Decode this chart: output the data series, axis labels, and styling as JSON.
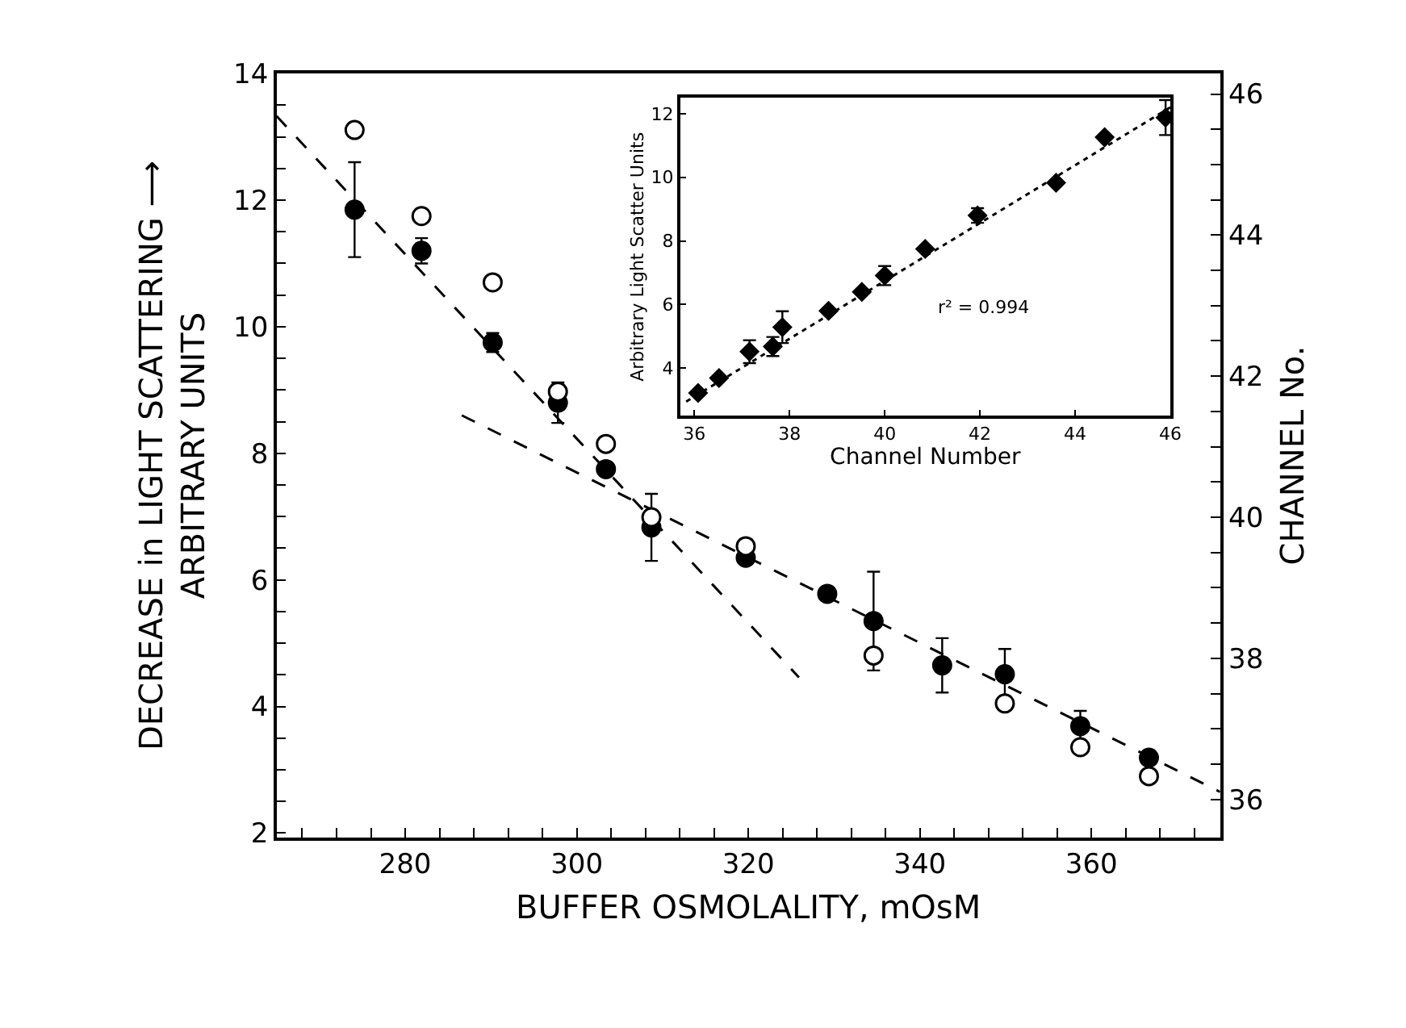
{
  "chart_data": [
    {
      "type": "scatter",
      "xlabel": "BUFFER OSMOLALITY, mOsM",
      "ylabel": "DECREASE in LIGHT SCATTERING ⟶\nARBITRARY UNITS",
      "y2label": "CHANNEL No.",
      "x": [
        274.1,
        281.9,
        290.2,
        297.8,
        303.4,
        308.7,
        319.7,
        329.2,
        334.6,
        342.6,
        349.9,
        358.7,
        366.7
      ],
      "series": [
        {
          "color": "#000000",
          "marker": "circle",
          "values": [
            11.85,
            11.2,
            9.75,
            8.8,
            7.75,
            6.83,
            6.35,
            5.78,
            5.35,
            4.65,
            4.51,
            3.69,
            3.19
          ],
          "errors": [
            0.75,
            0.2,
            0.15,
            0.32,
            null,
            0.53,
            null,
            null,
            0.78,
            0.43,
            0.4,
            0.24,
            null
          ]
        },
        {
          "axis": "y2",
          "color": "#ffffff",
          "marker": "circle",
          "values": [
            45.49,
            44.27,
            43.33,
            41.78,
            41.04,
            40.0,
            39.59,
            null,
            38.04,
            null,
            37.36,
            36.74,
            36.33
          ]
        },
        {
          "type": "line",
          "color": "#000000",
          "marker": "none",
          "line_style": "dashed",
          "x": [
            265,
            325.9
          ],
          "values": [
            13.33,
            4.46
          ]
        },
        {
          "type": "line",
          "color": "#000000",
          "marker": "none",
          "line_style": "dashed",
          "x": [
            286.6,
            375
          ],
          "values": [
            8.6,
            2.65
          ]
        }
      ],
      "xlim": [
        265,
        375
      ],
      "ylim": [
        1.93,
        14
      ],
      "y2lim": [
        35.46,
        46.29
      ],
      "xticks": [
        {
          "value": 268,
          "label": null
        },
        {
          "value": 272,
          "label": null
        },
        {
          "value": 276,
          "label": null
        },
        280,
        {
          "value": 284,
          "label": null
        },
        {
          "value": 288,
          "label": null
        },
        {
          "value": 292,
          "label": null
        },
        {
          "value": 296,
          "label": null
        },
        300,
        {
          "value": 304,
          "label": null
        },
        {
          "value": 308,
          "label": null
        },
        {
          "value": 312,
          "label": null
        },
        {
          "value": 316,
          "label": null
        },
        320,
        {
          "value": 324,
          "label": null
        },
        {
          "value": 328,
          "label": null
        },
        {
          "value": 332,
          "label": null
        },
        {
          "value": 336,
          "label": null
        },
        340,
        {
          "value": 344,
          "label": null
        },
        {
          "value": 348,
          "label": null
        },
        {
          "value": 352,
          "label": null
        },
        {
          "value": 356,
          "label": null
        },
        360,
        {
          "value": 364,
          "label": null
        },
        {
          "value": 368,
          "label": null
        },
        {
          "value": 372,
          "label": null
        }
      ],
      "yticks": [
        2,
        {
          "value": 2.5,
          "label": null
        },
        {
          "value": 3,
          "label": null
        },
        {
          "value": 3.5,
          "label": null
        },
        4,
        {
          "value": 4.5,
          "label": null
        },
        {
          "value": 5,
          "label": null
        },
        {
          "value": 5.5,
          "label": null
        },
        6,
        {
          "value": 6.5,
          "label": null
        },
        {
          "value": 7,
          "label": null
        },
        {
          "value": 7.5,
          "label": null
        },
        8,
        {
          "value": 8.5,
          "label": null
        },
        {
          "value": 9,
          "label": null
        },
        {
          "value": 9.5,
          "label": null
        },
        10,
        {
          "value": 10.5,
          "label": null
        },
        {
          "value": 11,
          "label": null
        },
        {
          "value": 11.5,
          "label": null
        },
        12,
        {
          "value": 12.5,
          "label": null
        },
        {
          "value": 13,
          "label": null
        },
        {
          "value": 13.5,
          "label": null
        },
        14
      ],
      "y2ticks": [
        36,
        {
          "value": 36.5,
          "label": null
        },
        {
          "value": 37,
          "label": null
        },
        {
          "value": 37.5,
          "label": null
        },
        38,
        {
          "value": 38.5,
          "label": null
        },
        {
          "value": 39,
          "label": null
        },
        {
          "value": 39.5,
          "label": null
        },
        40,
        {
          "value": 40.5,
          "label": null
        },
        {
          "value": 41,
          "label": null
        },
        {
          "value": 41.5,
          "label": null
        },
        42,
        {
          "value": 42.5,
          "label": null
        },
        {
          "value": 43,
          "label": null
        },
        {
          "value": 43.5,
          "label": null
        },
        44,
        {
          "value": 44.5,
          "label": null
        },
        {
          "value": 45,
          "label": null
        },
        {
          "value": 45.5,
          "label": null
        },
        46
      ]
    },
    {
      "type": "scatter",
      "xlabel": "Channel Number",
      "ylabel": "Arbitrary Light Scatter Units",
      "annotations": [
        "r² = 0.994"
      ],
      "series": [
        {
          "color": "#000000",
          "marker": "diamond",
          "x": [
            36.08,
            36.52,
            37.16,
            37.65,
            37.85,
            38.82,
            39.52,
            40.0,
            40.85,
            41.95,
            43.6,
            44.62,
            45.9
          ],
          "values": [
            3.22,
            3.69,
            4.52,
            4.68,
            5.29,
            5.8,
            6.4,
            6.91,
            7.75,
            8.8,
            9.83,
            11.26,
            11.88
          ],
          "errors": [
            null,
            null,
            0.36,
            0.3,
            0.5,
            null,
            null,
            0.3,
            null,
            0.23,
            null,
            null,
            0.55
          ]
        },
        {
          "type": "line",
          "color": "#000000",
          "marker": "none",
          "line_style": "dotted",
          "x": [
            35.83,
            46.0
          ],
          "values": [
            2.95,
            12.2
          ]
        }
      ],
      "xlim": [
        35.7,
        46
      ],
      "ylim": [
        2.5,
        12.5
      ],
      "xticks": [
        36,
        38,
        40,
        42,
        44,
        46
      ],
      "yticks": [
        4,
        6,
        8,
        10,
        12
      ]
    }
  ]
}
